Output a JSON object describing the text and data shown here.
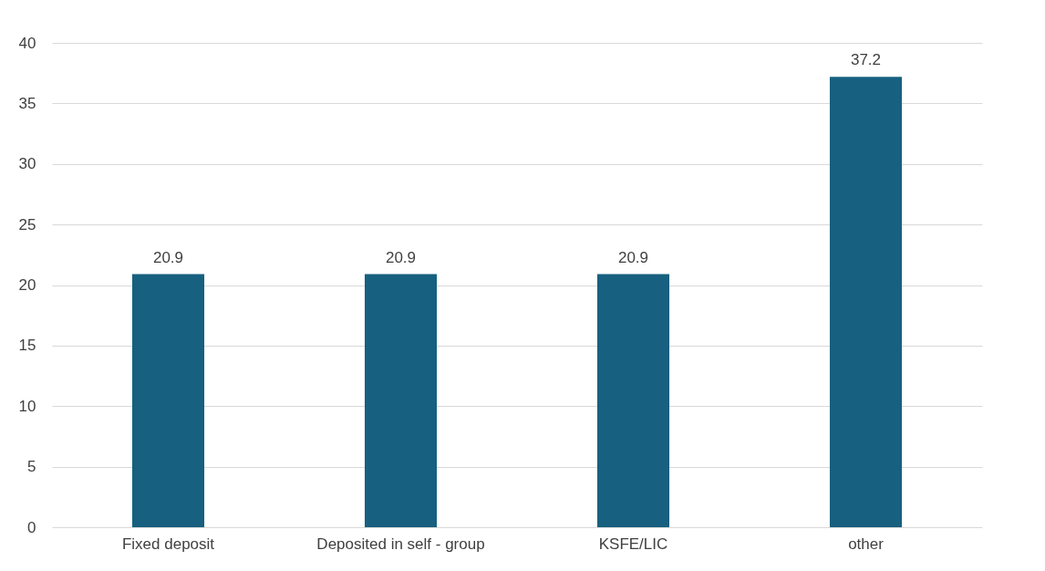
{
  "chart_data": {
    "type": "bar",
    "categories": [
      "Fixed deposit",
      "Deposited in self - group",
      "KSFE/LIC",
      "other"
    ],
    "values": [
      20.9,
      20.9,
      20.9,
      37.2
    ],
    "color": "#17607f",
    "ylim": [
      0,
      40
    ],
    "yticks": [
      0,
      5,
      10,
      15,
      20,
      25,
      30,
      35,
      40
    ],
    "grid": "y",
    "data_labels": true
  }
}
